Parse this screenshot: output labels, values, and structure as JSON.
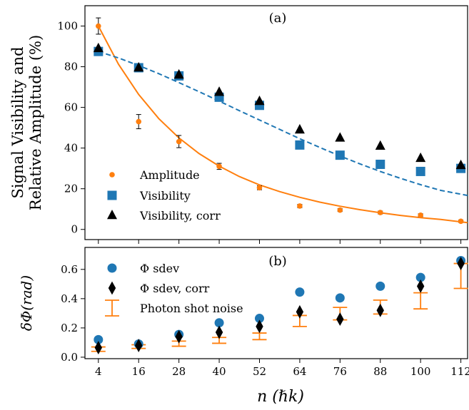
{
  "chart_data": [
    {
      "type": "scatter",
      "panel_label": "(a)",
      "xlabel": "",
      "ylabel_line1": "Signal Visibility and",
      "ylabel_line2": "Relative Amplitude (%)",
      "x": [
        4,
        16,
        28,
        40,
        52,
        64,
        76,
        88,
        100,
        112
      ],
      "xlim": [
        0,
        114
      ],
      "ylim": [
        -5,
        110
      ],
      "yticks": [
        0,
        20,
        40,
        60,
        80,
        100
      ],
      "legend_position": "lower-left",
      "colors": {
        "amplitude": "#ff7f0e",
        "visibility": "#1f77b4",
        "corr": "#000000"
      },
      "series": [
        {
          "name": "Amplitude",
          "marker": "circle",
          "values": [
            100,
            53,
            43.2,
            31,
            20.5,
            11.5,
            9.5,
            8.3,
            7,
            4
          ],
          "errors": [
            4,
            3.5,
            3,
            1.5,
            1,
            0.8,
            0.7,
            0.7,
            0.7,
            0.6
          ]
        },
        {
          "name": "Visibility",
          "marker": "square",
          "values": [
            87.5,
            79.5,
            75.5,
            65,
            61,
            41.5,
            36.5,
            32,
            28.5,
            30
          ]
        },
        {
          "name": "Visibility, corr",
          "marker": "triangle",
          "values": [
            89,
            79.5,
            76,
            67.5,
            63,
            49,
            45,
            41,
            35,
            31.5
          ]
        }
      ],
      "fits": [
        {
          "color": "#ff7f0e",
          "style": "solid",
          "x": [
            4,
            10,
            16,
            22,
            28,
            34,
            40,
            46,
            52,
            58,
            64,
            70,
            76,
            82,
            88,
            94,
            100,
            106,
            114
          ],
          "values": [
            100,
            81.2,
            66.4,
            54.5,
            45,
            37.3,
            31.1,
            26,
            21.9,
            18.6,
            15.8,
            13.4,
            11.4,
            9.7,
            8.2,
            6.9,
            5.8,
            4.9,
            3.3
          ]
        },
        {
          "color": "#1f77b4",
          "style": "dashed",
          "x": [
            4,
            10,
            16,
            22,
            28,
            34,
            40,
            46,
            52,
            58,
            64,
            70,
            76,
            82,
            88,
            94,
            100,
            106,
            114
          ],
          "values": [
            87.5,
            84.3,
            80.6,
            76.6,
            72.2,
            67.7,
            63.1,
            58.4,
            53.8,
            49.2,
            44.6,
            40.3,
            36.1,
            32.2,
            28.5,
            25.1,
            22,
            19.2,
            16.7
          ]
        }
      ]
    },
    {
      "type": "scatter",
      "panel_label": "(b)",
      "xlabel": "n (ℏk)",
      "ylabel": "δΦ(rad)",
      "x": [
        4,
        16,
        28,
        40,
        52,
        64,
        76,
        88,
        100,
        112
      ],
      "xticks": [
        4,
        16,
        28,
        40,
        52,
        64,
        76,
        88,
        100,
        112
      ],
      "xlim": [
        0,
        114
      ],
      "ylim": [
        -0.01,
        0.75
      ],
      "yticks": [
        0.0,
        0.2,
        0.4,
        0.6
      ],
      "legend_position": "upper-left",
      "colors": {
        "sdev": "#1f77b4",
        "corr": "#000000",
        "shot": "#ff7f0e"
      },
      "series": [
        {
          "name": "Φ sdev",
          "marker": "circle",
          "values": [
            0.12,
            0.09,
            0.155,
            0.235,
            0.265,
            0.445,
            0.405,
            0.485,
            0.545,
            0.66
          ]
        },
        {
          "name": "Φ sdev, corr",
          "marker": "diamond",
          "values": [
            0.065,
            0.08,
            0.14,
            0.17,
            0.21,
            0.31,
            0.26,
            0.32,
            0.485,
            0.64
          ]
        },
        {
          "name": "Photon shot noise",
          "marker": "errorbar",
          "lower": [
            0.04,
            0.06,
            0.075,
            0.095,
            0.12,
            0.21,
            0.255,
            0.295,
            0.33,
            0.47
          ],
          "upper": [
            0.07,
            0.085,
            0.11,
            0.135,
            0.165,
            0.285,
            0.34,
            0.39,
            0.44,
            0.64
          ]
        }
      ]
    }
  ]
}
